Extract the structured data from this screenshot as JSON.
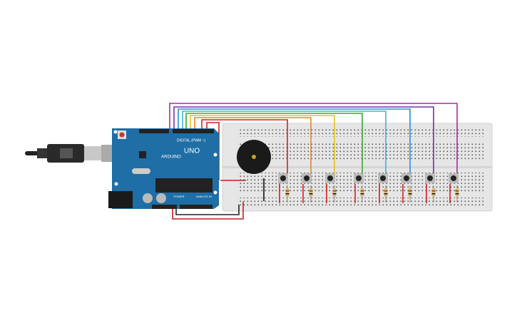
{
  "board": {
    "brand": "ARDUINO",
    "model": "UNO",
    "digital_label": "DIGITAL (PWM ~)",
    "power_label": "POWER",
    "analog_label": "ANALOG IN"
  }
}
